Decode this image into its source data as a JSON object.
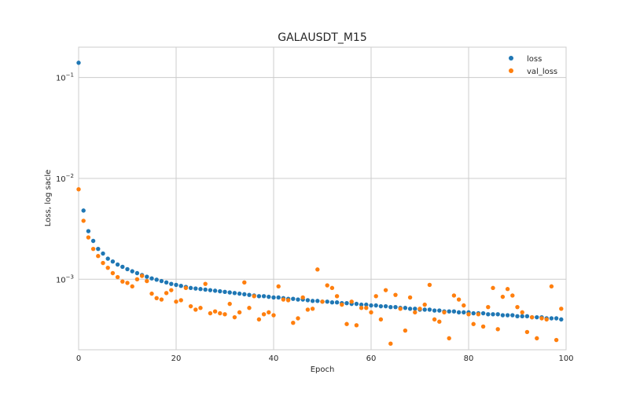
{
  "chart_data": {
    "type": "scatter",
    "title": "GALAUSDT_M15",
    "xlabel": "Epoch",
    "ylabel": "Loss, log sacle",
    "xlim": [
      0,
      100
    ],
    "ylim": [
      0.0002,
      0.2
    ],
    "yscale": "log",
    "grid": true,
    "legend_position": "top-right",
    "x_ticks": [
      0,
      20,
      40,
      60,
      80,
      100
    ],
    "y_ticks": [
      0.001,
      0.01,
      0.1
    ],
    "y_tick_labels": [
      {
        "base": "10",
        "exp": "−3"
      },
      {
        "base": "10",
        "exp": "−2"
      },
      {
        "base": "10",
        "exp": "−1"
      }
    ],
    "series": [
      {
        "name": "loss",
        "color": "#1f77b4",
        "x": [
          0,
          1,
          2,
          3,
          4,
          5,
          6,
          7,
          8,
          9,
          10,
          11,
          12,
          13,
          14,
          15,
          16,
          17,
          18,
          19,
          20,
          21,
          22,
          23,
          24,
          25,
          26,
          27,
          28,
          29,
          30,
          31,
          32,
          33,
          34,
          35,
          36,
          37,
          38,
          39,
          40,
          41,
          42,
          43,
          44,
          45,
          46,
          47,
          48,
          49,
          50,
          51,
          52,
          53,
          54,
          55,
          56,
          57,
          58,
          59,
          60,
          61,
          62,
          63,
          64,
          65,
          66,
          67,
          68,
          69,
          70,
          71,
          72,
          73,
          74,
          75,
          76,
          77,
          78,
          79,
          80,
          81,
          82,
          83,
          84,
          85,
          86,
          87,
          88,
          89,
          90,
          91,
          92,
          93,
          94,
          95,
          96,
          97,
          98,
          99
        ],
        "y": [
          0.14,
          0.0048,
          0.003,
          0.0024,
          0.002,
          0.0018,
          0.0016,
          0.0015,
          0.0014,
          0.00133,
          0.00126,
          0.0012,
          0.00115,
          0.0011,
          0.00106,
          0.00102,
          0.00099,
          0.00096,
          0.00093,
          0.0009,
          0.00088,
          0.00086,
          0.00084,
          0.00082,
          0.00081,
          0.0008,
          0.00079,
          0.00078,
          0.00077,
          0.00076,
          0.00075,
          0.00074,
          0.00073,
          0.00072,
          0.00071,
          0.0007,
          0.00069,
          0.00068,
          0.00068,
          0.00067,
          0.00066,
          0.00066,
          0.00065,
          0.00064,
          0.00064,
          0.00063,
          0.00063,
          0.00062,
          0.00061,
          0.00061,
          0.0006,
          0.0006,
          0.00059,
          0.00059,
          0.00058,
          0.00058,
          0.00057,
          0.00057,
          0.00056,
          0.00056,
          0.00055,
          0.00055,
          0.00054,
          0.00054,
          0.00053,
          0.00053,
          0.00052,
          0.00052,
          0.00051,
          0.00051,
          0.0005,
          0.0005,
          0.0005,
          0.00049,
          0.00049,
          0.00048,
          0.00048,
          0.00048,
          0.00047,
          0.00047,
          0.00047,
          0.00046,
          0.00046,
          0.00046,
          0.00045,
          0.00045,
          0.00045,
          0.00044,
          0.00044,
          0.00044,
          0.00043,
          0.00043,
          0.00043,
          0.00042,
          0.00042,
          0.00042,
          0.00041,
          0.00041,
          0.00041,
          0.0004
        ]
      },
      {
        "name": "val_loss",
        "color": "#ff7f0e",
        "x": [
          0,
          1,
          2,
          3,
          4,
          5,
          6,
          7,
          8,
          9,
          10,
          11,
          12,
          13,
          14,
          15,
          16,
          17,
          18,
          19,
          20,
          21,
          22,
          23,
          24,
          25,
          26,
          27,
          28,
          29,
          30,
          31,
          32,
          33,
          34,
          35,
          36,
          37,
          38,
          39,
          40,
          41,
          42,
          43,
          44,
          45,
          46,
          47,
          48,
          49,
          50,
          51,
          52,
          53,
          54,
          55,
          56,
          57,
          58,
          59,
          60,
          61,
          62,
          63,
          64,
          65,
          66,
          67,
          68,
          69,
          70,
          71,
          72,
          73,
          74,
          75,
          76,
          77,
          78,
          79,
          80,
          81,
          82,
          83,
          84,
          85,
          86,
          87,
          88,
          89,
          90,
          91,
          92,
          93,
          94,
          95,
          96,
          97,
          98,
          99
        ],
        "y": [
          0.0078,
          0.0038,
          0.0026,
          0.002,
          0.0017,
          0.00145,
          0.0013,
          0.00115,
          0.00105,
          0.00095,
          0.00092,
          0.00085,
          0.001,
          0.00108,
          0.00096,
          0.00072,
          0.00065,
          0.00063,
          0.00073,
          0.00078,
          0.0006,
          0.00062,
          0.00082,
          0.00054,
          0.0005,
          0.00052,
          0.0009,
          0.00046,
          0.00048,
          0.00046,
          0.00045,
          0.00057,
          0.00042,
          0.00047,
          0.00093,
          0.00052,
          0.00068,
          0.0004,
          0.00045,
          0.00047,
          0.00044,
          0.00085,
          0.00063,
          0.00062,
          0.00037,
          0.00041,
          0.00066,
          0.0005,
          0.00051,
          0.00125,
          0.0006,
          0.00087,
          0.00082,
          0.00068,
          0.00056,
          0.00036,
          0.0006,
          0.00035,
          0.00052,
          0.00052,
          0.00047,
          0.00068,
          0.0004,
          0.00078,
          0.00023,
          0.0007,
          0.00051,
          0.00031,
          0.00066,
          0.00047,
          0.00051,
          0.00056,
          0.00088,
          0.0004,
          0.00038,
          0.00047,
          0.00026,
          0.00069,
          0.00063,
          0.00055,
          0.00045,
          0.00036,
          0.00045,
          0.00034,
          0.00053,
          0.00082,
          0.00032,
          0.00067,
          0.0008,
          0.00069,
          0.00053,
          0.00047,
          0.0003,
          0.00042,
          0.00026,
          0.00041,
          0.0004,
          0.00085,
          0.00025,
          0.00051
        ]
      }
    ]
  }
}
